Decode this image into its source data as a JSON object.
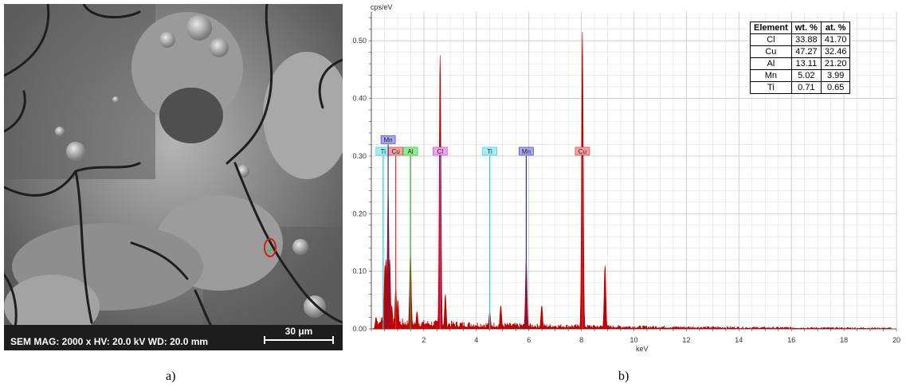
{
  "panel_a": {
    "caption": "a)",
    "info": "SEM  MAG: 2000 x  HV: 20.0 kV  WD: 20.0 mm",
    "scale_label": "30 μm",
    "marker_color": "#e01818",
    "marker_cross_color": "#2ecc40"
  },
  "panel_b": {
    "caption": "b)"
  },
  "chart_data": {
    "type": "line",
    "title": "",
    "ylabel": "cps/eV",
    "xlabel": "keV",
    "xlim": [
      0,
      20
    ],
    "ylim": [
      0,
      0.55
    ],
    "x_ticks": [
      2,
      4,
      6,
      8,
      10,
      12,
      14,
      16,
      18,
      20
    ],
    "y_ticks": [
      0.0,
      0.1,
      0.2,
      0.3,
      0.4,
      0.5
    ],
    "y_tick_labels": [
      "0.00",
      "0.10",
      "0.20",
      "0.30",
      "0.40",
      "0.50"
    ],
    "grid": true,
    "series": [
      {
        "color": "#c00000",
        "x": [
          0.18,
          0.28,
          0.4,
          0.52,
          0.56,
          0.64,
          0.7,
          0.78,
          0.93,
          1.01,
          1.49,
          1.74,
          2.62,
          2.82,
          4.51,
          4.93,
          5.9,
          6.49,
          8.04,
          8.9
        ],
        "values": [
          0.02,
          0.01,
          0.02,
          0.11,
          0.12,
          0.24,
          0.12,
          0.04,
          0.07,
          0.05,
          0.13,
          0.03,
          0.475,
          0.06,
          0.03,
          0.04,
          0.12,
          0.04,
          0.515,
          0.11
        ]
      }
    ],
    "element_markers": [
      {
        "label": "Ti",
        "energy": 0.45,
        "height": 0.3,
        "color": "#30c8d8",
        "box": "#9ef0f4"
      },
      {
        "label": "Mn",
        "energy": 0.64,
        "height": 0.32,
        "color": "#3030a0",
        "box": "#a8a8f0"
      },
      {
        "label": "Cu",
        "energy": 0.93,
        "height": 0.3,
        "color": "#d03030",
        "box": "#f4a0a0"
      },
      {
        "label": "Al",
        "energy": 1.49,
        "height": 0.3,
        "color": "#20b020",
        "box": "#90ee90"
      },
      {
        "label": "Cl",
        "energy": 2.62,
        "height": 0.3,
        "color": "#c040c0",
        "box": "#f0a0f0"
      },
      {
        "label": "Ti",
        "energy": 4.51,
        "height": 0.3,
        "color": "#30c8d8",
        "box": "#9ef0f4"
      },
      {
        "label": "Mn",
        "energy": 5.9,
        "height": 0.3,
        "color": "#3030a0",
        "box": "#a8a8f0"
      },
      {
        "label": "Cu",
        "energy": 8.04,
        "height": 0.3,
        "color": "#d03030",
        "box": "#f4a0a0"
      }
    ],
    "table": {
      "headers": [
        "Element",
        "wt. %",
        "at. %"
      ],
      "rows": [
        [
          "Cl",
          "33.88",
          "41.70"
        ],
        [
          "Cu",
          "47.27",
          "32.46"
        ],
        [
          "Al",
          "13.11",
          "21.20"
        ],
        [
          "Mn",
          "5.02",
          "3.99"
        ],
        [
          "Ti",
          "0.71",
          "0.65"
        ]
      ]
    }
  }
}
